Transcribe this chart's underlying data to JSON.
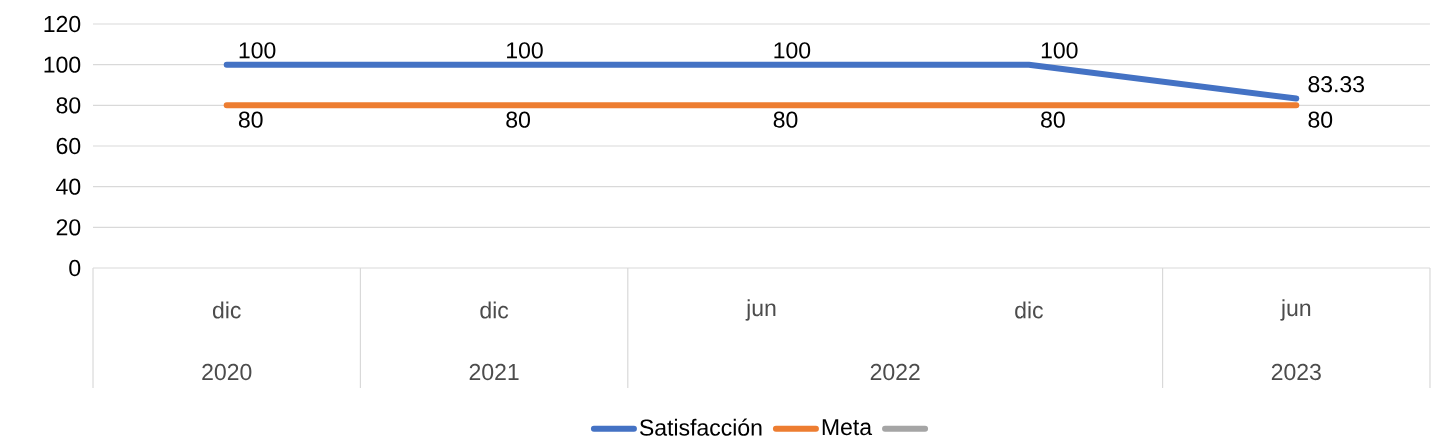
{
  "chart_data": {
    "type": "line",
    "categories": [
      "dic",
      "dic",
      "jun",
      "dic",
      "jun"
    ],
    "series": [
      {
        "name": "Satisfacción",
        "color": "#4472c4",
        "values": [
          100,
          100,
          100,
          100,
          83.33
        ]
      },
      {
        "name": "Meta",
        "color": "#ed7d31",
        "values": [
          80,
          80,
          80,
          80,
          80
        ]
      },
      {
        "color": "#a5a5a5",
        "values": [
          null,
          null,
          null,
          null,
          null
        ]
      }
    ],
    "annotations": [
      "2020",
      "2021",
      "2022",
      "2023"
    ],
    "ylim": [
      0,
      120
    ],
    "yticks": [
      0,
      20,
      40,
      60,
      80,
      100,
      120
    ],
    "grid": "y",
    "legend": "bottom",
    "data_labels": true,
    "marker": "none",
    "line_style": "solid"
  }
}
